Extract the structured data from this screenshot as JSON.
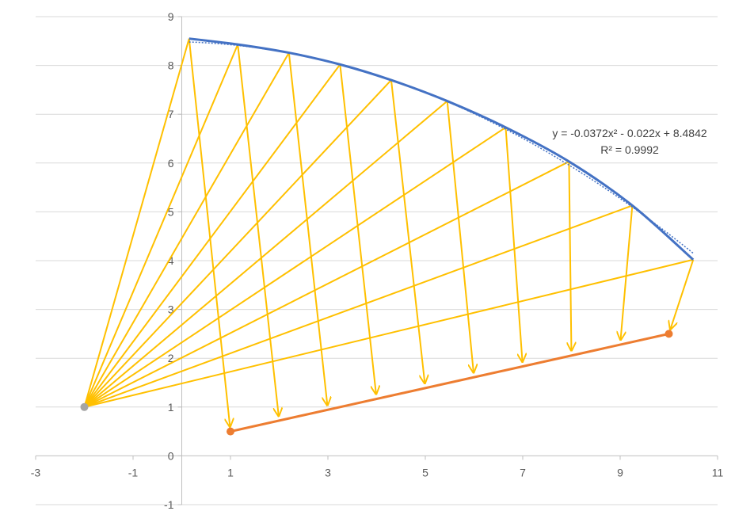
{
  "chart_data": {
    "type": "scatter",
    "title": "",
    "xlabel": "",
    "ylabel": "",
    "xlim": [
      -3,
      11
    ],
    "ylim": [
      -1,
      9
    ],
    "x_ticks": [
      -3,
      -1,
      1,
      3,
      5,
      7,
      9,
      11
    ],
    "y_ticks": [
      -1,
      0,
      1,
      2,
      3,
      4,
      5,
      6,
      7,
      8,
      9
    ],
    "grid": "horizontal",
    "legend": "none",
    "source_point": {
      "x": -2,
      "y": 1,
      "color": "#a5a5a5"
    },
    "arc_points": [
      {
        "x": 0.15,
        "y": 8.55
      },
      {
        "x": 1.15,
        "y": 8.43
      },
      {
        "x": 2.2,
        "y": 8.26
      },
      {
        "x": 3.25,
        "y": 8.02
      },
      {
        "x": 4.3,
        "y": 7.7
      },
      {
        "x": 5.45,
        "y": 7.27
      },
      {
        "x": 6.65,
        "y": 6.73
      },
      {
        "x": 7.95,
        "y": 6.03
      },
      {
        "x": 9.25,
        "y": 5.13
      },
      {
        "x": 10.5,
        "y": 4.02
      }
    ],
    "projected_points": [
      {
        "x": 1.0,
        "y": 0.5
      },
      {
        "x": 2.0,
        "y": 0.72
      },
      {
        "x": 3.0,
        "y": 0.94
      },
      {
        "x": 4.0,
        "y": 1.17
      },
      {
        "x": 5.0,
        "y": 1.39
      },
      {
        "x": 6.0,
        "y": 1.61
      },
      {
        "x": 7.0,
        "y": 1.83
      },
      {
        "x": 8.0,
        "y": 2.06
      },
      {
        "x": 9.0,
        "y": 2.28
      },
      {
        "x": 10.0,
        "y": 2.5
      }
    ],
    "base_line": {
      "x1": 1,
      "y1": 0.5,
      "x2": 10,
      "y2": 2.5
    },
    "trendline": {
      "type": "polynomial",
      "order": 2,
      "coefficients": [
        -0.0372,
        -0.022,
        8.4842
      ],
      "x_range": [
        0.15,
        10.5
      ]
    },
    "equation_label": "y = -0.0372x² - 0.022x + 8.4842",
    "r2_label": "R² = 0.9992",
    "colors": {
      "arc": "#4472c4",
      "trend": "#4472c4",
      "rays": "#ffc000",
      "arrows": "#ffc000",
      "base_line": "#ed7d31",
      "base_points": "#ed7d31",
      "source": "#a5a5a5",
      "grid": "#d9d9d9",
      "axis": "#bfbfbf"
    }
  }
}
